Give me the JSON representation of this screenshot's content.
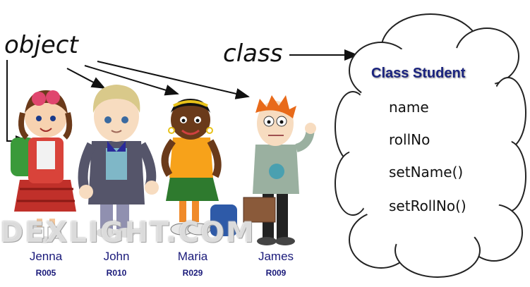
{
  "labels": {
    "object": "object",
    "class": "class"
  },
  "class_box": {
    "title": "Class Student",
    "members": [
      "name",
      "rollNo",
      "setName()",
      "setRollNo()"
    ]
  },
  "students": [
    {
      "name": "Jenna",
      "roll": "R005"
    },
    {
      "name": "John",
      "roll": "R010"
    },
    {
      "name": "Maria",
      "roll": "R029"
    },
    {
      "name": "James",
      "roll": "R009"
    }
  ],
  "watermark": "DEXLIGHT.COM"
}
